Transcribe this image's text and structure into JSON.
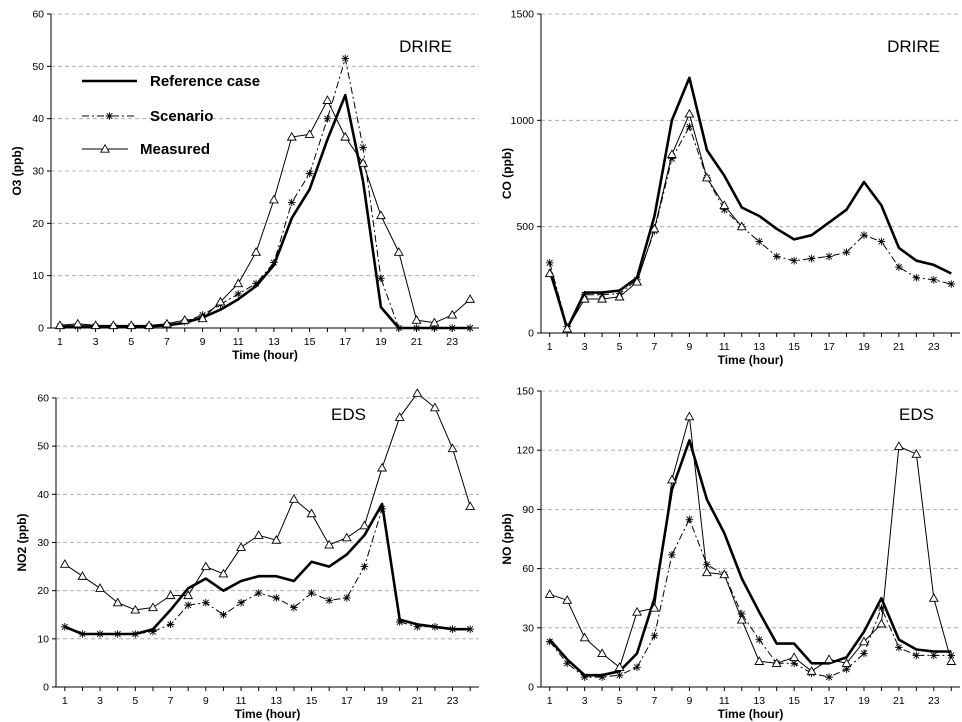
{
  "chart_data": [
    {
      "type": "line",
      "location": "DRIRE",
      "xlabel": "Time (hour)",
      "ylabel": "O3 (ppb)",
      "ylabel_display": "O3 (ppb)",
      "xlim": [
        0.5,
        24.5
      ],
      "ylim": [
        0,
        60
      ],
      "yticks": [
        0,
        10,
        20,
        30,
        40,
        50,
        60
      ],
      "xticks": [
        1,
        3,
        5,
        7,
        9,
        11,
        13,
        15,
        17,
        19,
        21,
        23
      ],
      "grid": "horizontal-dashed",
      "legend": "top-left",
      "x": [
        1,
        2,
        3,
        4,
        5,
        6,
        7,
        8,
        9,
        10,
        11,
        12,
        13,
        14,
        15,
        16,
        17,
        18,
        19,
        20,
        21,
        22,
        23,
        24
      ],
      "series": [
        {
          "name": "Reference case",
          "style": "thick-solid",
          "values": [
            0.3,
            0.3,
            0.3,
            0.3,
            0.3,
            0.3,
            0.5,
            1,
            2,
            3.5,
            5.5,
            8,
            12,
            21,
            26.5,
            36,
            44.5,
            28,
            4,
            0,
            0,
            0,
            0,
            0
          ]
        },
        {
          "name": "Scenario",
          "style": "dashdot-star",
          "values": [
            0.3,
            0.3,
            0.3,
            0.3,
            0.3,
            0.3,
            0.6,
            1.2,
            2.5,
            4.5,
            6.5,
            8.5,
            12.5,
            24,
            29.5,
            40,
            51.5,
            34.5,
            9.5,
            0,
            0,
            0,
            0,
            0
          ]
        },
        {
          "name": "Measured",
          "style": "thin-triangle",
          "values": [
            0.5,
            0.8,
            0.5,
            0.5,
            0.5,
            0.5,
            0.8,
            1.5,
            1.8,
            5,
            8.5,
            14.5,
            24.5,
            36.5,
            37,
            43.5,
            36.5,
            31.5,
            21.5,
            14.5,
            1.5,
            1,
            2.5,
            5.5
          ]
        }
      ]
    },
    {
      "type": "line",
      "location": "DRIRE",
      "xlabel": "Time (hour)",
      "ylabel": "CO (ppb)",
      "ylabel_display": "CO (ppb)",
      "xlim": [
        0.5,
        24.5
      ],
      "ylim": [
        0,
        1500
      ],
      "yticks": [
        0,
        500,
        1000,
        1500
      ],
      "xticks": [
        1,
        3,
        5,
        7,
        9,
        11,
        13,
        15,
        17,
        19,
        21,
        23
      ],
      "grid": "horizontal-dashed",
      "x": [
        1,
        2,
        3,
        4,
        5,
        6,
        7,
        8,
        9,
        10,
        11,
        12,
        13,
        14,
        15,
        16,
        17,
        18,
        19,
        20,
        21,
        22,
        23,
        24
      ],
      "series": [
        {
          "name": "Reference case",
          "style": "thick-solid",
          "values": [
            300,
            20,
            190,
            190,
            200,
            260,
            550,
            1000,
            1200,
            860,
            740,
            590,
            550,
            490,
            440,
            460,
            520,
            580,
            710,
            600,
            400,
            340,
            320,
            280
          ]
        },
        {
          "name": "Scenario",
          "style": "dashdot-star",
          "values": [
            330,
            30,
            180,
            180,
            185,
            250,
            480,
            820,
            970,
            730,
            580,
            500,
            430,
            360,
            340,
            350,
            360,
            380,
            460,
            430,
            310,
            260,
            250,
            230
          ]
        },
        {
          "name": "Measured",
          "style": "thin-triangle",
          "values": [
            280,
            20,
            160,
            160,
            170,
            240,
            490,
            840,
            1030,
            730,
            600,
            500,
            null,
            null,
            null,
            null,
            null,
            null,
            null,
            null,
            null,
            null,
            null,
            null
          ]
        }
      ]
    },
    {
      "type": "line",
      "location": "EDS",
      "xlabel": "Time (hour)",
      "ylabel": "NO2 (ppb)",
      "ylabel_display": "NO2 (ppb)",
      "xlim": [
        0.5,
        24.5
      ],
      "ylim": [
        0,
        60
      ],
      "yticks": [
        0,
        10,
        20,
        30,
        40,
        50,
        60
      ],
      "xticks": [
        1,
        3,
        5,
        7,
        9,
        11,
        13,
        15,
        17,
        19,
        21,
        23
      ],
      "grid": "horizontal-dashed",
      "x": [
        1,
        2,
        3,
        4,
        5,
        6,
        7,
        8,
        9,
        10,
        11,
        12,
        13,
        14,
        15,
        16,
        17,
        18,
        19,
        20,
        21,
        22,
        23,
        24
      ],
      "series": [
        {
          "name": "Reference case",
          "style": "thick-solid",
          "values": [
            12.5,
            11,
            11,
            11,
            11,
            12,
            16,
            20.5,
            22.5,
            20,
            22,
            23,
            23,
            22,
            26,
            25,
            27.5,
            31.5,
            38,
            14,
            13,
            12.5,
            12,
            12
          ]
        },
        {
          "name": "Scenario",
          "style": "dashdot-star",
          "values": [
            12.5,
            11,
            11,
            11,
            11,
            11.5,
            13,
            17,
            17.5,
            15,
            17.5,
            19.5,
            18.5,
            16.5,
            19.5,
            18,
            18.5,
            25,
            37,
            13.5,
            12.5,
            12.5,
            12,
            12
          ]
        },
        {
          "name": "Measured",
          "style": "thin-triangle",
          "values": [
            25.5,
            23,
            20.5,
            17.5,
            16,
            16.5,
            19,
            19,
            25,
            23.5,
            29,
            31.5,
            30.5,
            39,
            36,
            29.5,
            31,
            33.5,
            45.5,
            56,
            61,
            58,
            49.5,
            37.5
          ]
        }
      ]
    },
    {
      "type": "line",
      "location": "EDS",
      "xlabel": "Time (hour)",
      "ylabel": "NO (ppb)",
      "ylabel_display": "NO (ppb)",
      "xlim": [
        0.5,
        24.5
      ],
      "ylim": [
        0,
        150
      ],
      "yticks": [
        0,
        30,
        60,
        90,
        120,
        150
      ],
      "xticks": [
        1,
        3,
        5,
        7,
        9,
        11,
        13,
        15,
        17,
        19,
        21,
        23
      ],
      "grid": "horizontal-dashed",
      "x": [
        1,
        2,
        3,
        4,
        5,
        6,
        7,
        8,
        9,
        10,
        11,
        12,
        13,
        14,
        15,
        16,
        17,
        18,
        19,
        20,
        21,
        22,
        23,
        24
      ],
      "series": [
        {
          "name": "Reference case",
          "style": "thick-solid",
          "values": [
            24,
            14,
            6,
            6,
            8,
            17,
            45,
            100,
            125,
            95,
            78,
            55,
            38,
            22,
            22,
            12,
            12,
            15,
            28,
            45,
            24,
            19,
            18,
            18
          ]
        },
        {
          "name": "Scenario",
          "style": "dashdot-star",
          "values": [
            23,
            12,
            5,
            5,
            6,
            10,
            26,
            67,
            85,
            62,
            57,
            37,
            24,
            12,
            12,
            7,
            5,
            9,
            17,
            40,
            20,
            16,
            16,
            16
          ]
        },
        {
          "name": "Measured",
          "style": "thin-triangle",
          "values": [
            47,
            44,
            25,
            17,
            10,
            38,
            40,
            105,
            137,
            58,
            57,
            34,
            13,
            12,
            15,
            8,
            14,
            12,
            23,
            32,
            122,
            118,
            45,
            13
          ]
        }
      ]
    }
  ],
  "legend": {
    "items": [
      {
        "label": "Reference case",
        "style": "thick-solid"
      },
      {
        "label": "Scenario",
        "style": "dashdot-star"
      },
      {
        "label": "Measured",
        "style": "thin-triangle"
      }
    ]
  },
  "colors": {
    "line": "#000000",
    "grid": "#a0a0a0",
    "background": "#ffffff"
  }
}
